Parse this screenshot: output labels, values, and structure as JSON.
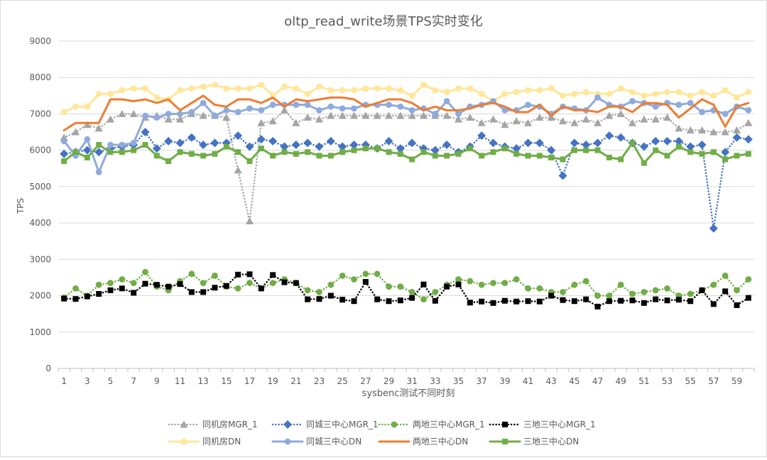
{
  "chart_data": {
    "type": "line",
    "title": "oltp_read_write场景TPS实时变化",
    "xlabel": "sysbenc测试不同时刻",
    "ylabel": "TPS",
    "ylim": [
      0,
      9000
    ],
    "yticks": [
      0,
      1000,
      2000,
      3000,
      4000,
      5000,
      6000,
      7000,
      8000,
      9000
    ],
    "x": [
      1,
      2,
      3,
      4,
      5,
      6,
      7,
      8,
      9,
      10,
      11,
      12,
      13,
      14,
      15,
      16,
      17,
      18,
      19,
      20,
      21,
      22,
      23,
      24,
      25,
      26,
      27,
      28,
      29,
      30,
      31,
      32,
      33,
      34,
      35,
      36,
      37,
      38,
      39,
      40,
      41,
      42,
      43,
      44,
      45,
      46,
      47,
      48,
      49,
      50,
      51,
      52,
      53,
      54,
      55,
      56,
      57,
      58,
      59,
      60
    ],
    "xtick_labels": [
      "1",
      "3",
      "5",
      "7",
      "9",
      "11",
      "13",
      "15",
      "17",
      "19",
      "21",
      "23",
      "25",
      "27",
      "29",
      "31",
      "33",
      "35",
      "37",
      "39",
      "41",
      "43",
      "45",
      "47",
      "49",
      "51",
      "53",
      "55",
      "57",
      "59"
    ],
    "grid": "horizontal",
    "legend_position": "bottom",
    "series": [
      {
        "name": "同机房MGR_1",
        "color": "#a5a5a5",
        "style": "dotted",
        "marker": "triangle",
        "values": [
          6350,
          6500,
          6700,
          6600,
          6850,
          7000,
          7000,
          6900,
          6950,
          6850,
          6850,
          7000,
          6950,
          6950,
          6900,
          5450,
          4050,
          6750,
          6800,
          7100,
          6750,
          6900,
          6850,
          6950,
          6950,
          6950,
          6950,
          6950,
          6950,
          6950,
          6950,
          6950,
          6950,
          6950,
          6850,
          6900,
          6750,
          6850,
          6700,
          6800,
          6750,
          6900,
          6900,
          6800,
          6750,
          6850,
          6750,
          6950,
          7000,
          6750,
          6850,
          6850,
          6900,
          6600,
          6550,
          6550,
          6500,
          6500,
          6550,
          6750
        ]
      },
      {
        "name": "同城三中心MGR_1",
        "color": "#4472c4",
        "style": "dotted",
        "marker": "diamond",
        "values": [
          5900,
          5950,
          6000,
          5950,
          6050,
          6100,
          6150,
          6500,
          6050,
          6250,
          6200,
          6350,
          6150,
          6200,
          6200,
          6400,
          6100,
          6300,
          6250,
          6100,
          6150,
          6200,
          6100,
          6250,
          6100,
          6150,
          6150,
          6050,
          6250,
          6050,
          6200,
          6050,
          6000,
          6150,
          5950,
          6100,
          6400,
          6200,
          6100,
          6050,
          6200,
          6200,
          6000,
          5300,
          6200,
          6150,
          6200,
          6400,
          6350,
          6200,
          6100,
          6250,
          6250,
          6250,
          6100,
          6150,
          3850,
          5950,
          6350,
          6300
        ]
      },
      {
        "name": "两地三中心MGR_1",
        "color": "#70ad47",
        "style": "dotted",
        "marker": "dot",
        "values": [
          1950,
          2200,
          2000,
          2300,
          2350,
          2450,
          2350,
          2650,
          2250,
          2150,
          2400,
          2600,
          2350,
          2550,
          2250,
          2200,
          2350,
          2200,
          2350,
          2450,
          2350,
          2150,
          2100,
          2300,
          2550,
          2450,
          2600,
          2600,
          2250,
          2250,
          2100,
          1900,
          2100,
          2300,
          2450,
          2400,
          2300,
          2350,
          2350,
          2450,
          2200,
          2200,
          2100,
          2100,
          2300,
          2400,
          2000,
          2000,
          2300,
          2050,
          2100,
          2150,
          2200,
          2000,
          2050,
          2150,
          2300,
          2550,
          2150,
          2450
        ]
      },
      {
        "name": "三地三中心MGR_1",
        "color": "#000000",
        "style": "dotted",
        "marker": "square",
        "values": [
          1920,
          1910,
          1980,
          2050,
          2150,
          2200,
          2080,
          2330,
          2300,
          2250,
          2320,
          2100,
          2100,
          2220,
          2270,
          2580,
          2590,
          2200,
          2570,
          2370,
          2350,
          1900,
          1910,
          2000,
          1890,
          1850,
          2380,
          1900,
          1850,
          1870,
          1940,
          2310,
          1860,
          2250,
          2310,
          1810,
          1840,
          1800,
          1860,
          1840,
          1850,
          1840,
          2000,
          1880,
          1850,
          1900,
          1700,
          1850,
          1860,
          1870,
          1800,
          1900,
          1870,
          1890,
          1850,
          2150,
          1770,
          2120,
          1740,
          1940
        ]
      },
      {
        "name": "同机房DN",
        "color": "#ffe699",
        "style": "solid",
        "marker": "dot",
        "values": [
          7050,
          7200,
          7200,
          7550,
          7550,
          7650,
          7700,
          7700,
          7450,
          7400,
          7650,
          7700,
          7750,
          7800,
          7700,
          7700,
          7700,
          7800,
          7500,
          7750,
          7700,
          7550,
          7750,
          7650,
          7650,
          7650,
          7700,
          7700,
          7700,
          7650,
          7500,
          7800,
          7650,
          7600,
          7700,
          7700,
          7550,
          7350,
          7550,
          7600,
          7650,
          7650,
          7700,
          7500,
          7550,
          7600,
          7550,
          7550,
          7700,
          7600,
          7500,
          7550,
          7600,
          7600,
          7500,
          7600,
          7500,
          7650,
          7450,
          7600
        ]
      },
      {
        "name": "同城三中心DN",
        "color": "#8faadc",
        "style": "solid",
        "marker": "dot",
        "values": [
          6250,
          5850,
          6300,
          5400,
          6150,
          6150,
          6200,
          6950,
          6900,
          7000,
          7000,
          7050,
          7300,
          6950,
          7100,
          7050,
          7150,
          7100,
          7250,
          7250,
          7250,
          7250,
          7100,
          7200,
          7150,
          7150,
          7250,
          7250,
          7250,
          7200,
          7100,
          7150,
          7000,
          7350,
          7000,
          7200,
          7250,
          7350,
          7100,
          7100,
          7250,
          7200,
          7000,
          7200,
          7150,
          7100,
          7450,
          7250,
          7200,
          7350,
          7300,
          7200,
          7300,
          7250,
          7300,
          7050,
          7100,
          7000,
          7200,
          7100
        ]
      },
      {
        "name": "两地三中心DN",
        "color": "#ed7d31",
        "style": "solid",
        "marker": "none",
        "values": [
          6550,
          6750,
          6750,
          6750,
          7400,
          7400,
          7350,
          7400,
          7300,
          7400,
          7100,
          7300,
          7500,
          7250,
          7200,
          7400,
          7400,
          7300,
          7450,
          7200,
          7400,
          7350,
          7400,
          7450,
          7450,
          7400,
          7200,
          7300,
          7400,
          7400,
          7300,
          7100,
          7200,
          7100,
          7100,
          7150,
          7250,
          7300,
          7200,
          7050,
          7050,
          7250,
          6950,
          7200,
          7100,
          7100,
          7050,
          7200,
          7200,
          7050,
          7300,
          7300,
          7250,
          6900,
          7150,
          7400,
          7250,
          6650,
          7200,
          7300
        ]
      },
      {
        "name": "三地三中心DN",
        "color": "#70ad47",
        "style": "solid",
        "marker": "square",
        "values": [
          5700,
          5950,
          5800,
          6150,
          5950,
          5950,
          6000,
          6150,
          5850,
          5700,
          5950,
          5900,
          5850,
          5900,
          6100,
          5950,
          5700,
          6050,
          5850,
          5950,
          5900,
          5950,
          5850,
          5850,
          5950,
          6000,
          6050,
          6050,
          5950,
          5900,
          5750,
          5950,
          5850,
          5850,
          5900,
          6050,
          5850,
          5950,
          6050,
          5900,
          5850,
          5850,
          5800,
          5750,
          6000,
          6000,
          6000,
          5800,
          5750,
          6200,
          5650,
          6000,
          5850,
          6100,
          5950,
          5900,
          5950,
          5750,
          5850,
          5900
        ]
      }
    ]
  }
}
